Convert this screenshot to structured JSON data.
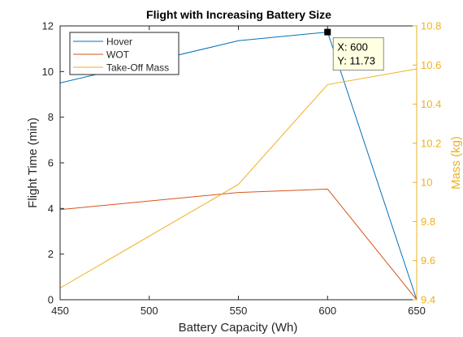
{
  "chart_data": {
    "type": "line",
    "title": "Flight with Increasing Battery Size",
    "xlabel": "Battery Capacity (Wh)",
    "ylabel_left": "Flight Time (min)",
    "ylabel_right": "Mass (kg)",
    "xlim": [
      450,
      650
    ],
    "ylim_left": [
      0,
      12
    ],
    "ylim_right": [
      9.4,
      10.8
    ],
    "xticks": [
      "450",
      "500",
      "550",
      "600",
      "650"
    ],
    "yticks_left": [
      "0",
      "2",
      "4",
      "6",
      "8",
      "10",
      "12"
    ],
    "yticks_right": [
      "9.4",
      "9.6",
      "9.8",
      "10",
      "10.2",
      "10.4",
      "10.6",
      "10.8"
    ],
    "grid": false,
    "legend_position": "top-left",
    "x": [
      450,
      550,
      600,
      650
    ],
    "series": [
      {
        "name": "Hover",
        "axis": "left",
        "color": "#0072BD",
        "values": [
          9.5,
          11.35,
          11.73,
          0
        ]
      },
      {
        "name": "WOT",
        "axis": "left",
        "color": "#D95319",
        "values": [
          3.95,
          4.7,
          4.85,
          0
        ]
      },
      {
        "name": "Take-Off Mass",
        "axis": "right",
        "color": "#EDB120",
        "values": [
          9.46,
          9.99,
          10.5,
          10.58
        ]
      }
    ],
    "datatip": {
      "series": "Hover",
      "x": 600,
      "y": 11.73,
      "line1": "X: 600",
      "line2": "Y: 11.73"
    },
    "right_axis_color": "#EDB120"
  }
}
